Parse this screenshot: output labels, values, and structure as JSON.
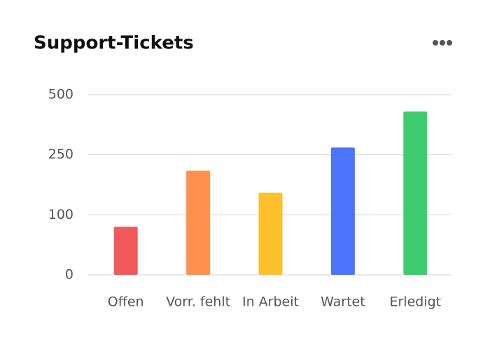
{
  "chart_data": {
    "type": "bar",
    "title": "Support-Tickets",
    "categories": [
      "Offen",
      "Vorr. fehlt",
      "In Arbeit",
      "Wartet",
      "Erledigt"
    ],
    "values": [
      80,
      210,
      155,
      280,
      430
    ],
    "colors": [
      "#f05a5a",
      "#ff914d",
      "#ffc12b",
      "#4d74ff",
      "#3ecc6e"
    ],
    "ylim": [
      0,
      500
    ],
    "yticks": [
      0,
      100,
      250,
      500
    ],
    "scale": "tick-interpolated",
    "grid": true
  }
}
